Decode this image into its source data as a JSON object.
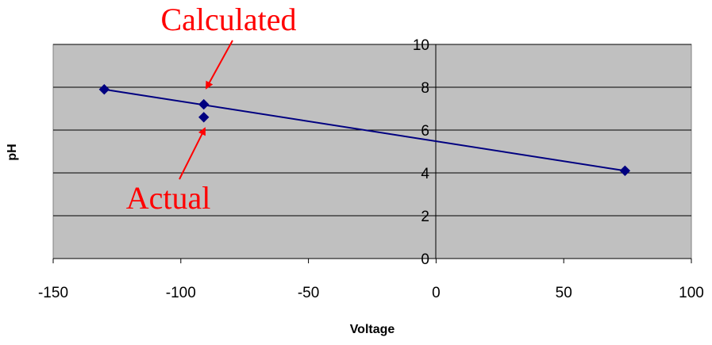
{
  "colors": {
    "plot_background": "#c0c0c0",
    "gridline": "#000000",
    "series_line": "#000080",
    "marker": "#000080",
    "annotation": "#ff0000"
  },
  "chart_data": {
    "type": "scatter",
    "xlabel": "Voltage",
    "ylabel": "pH",
    "xlim": [
      -150,
      100
    ],
    "ylim": [
      0,
      10
    ],
    "x_ticks": [
      -150,
      -100,
      -50,
      0,
      50,
      100
    ],
    "y_ticks": [
      0,
      2,
      4,
      6,
      8,
      10
    ],
    "grid": "horizontal major gridlines",
    "legend": "none",
    "points": [
      {
        "x": -130,
        "y": 7.9
      },
      {
        "x": -91,
        "y": 7.2
      },
      {
        "x": -91,
        "y": 6.6
      },
      {
        "x": 74,
        "y": 4.1
      }
    ],
    "line": {
      "x": [
        -130,
        74
      ],
      "y": [
        7.9,
        4.1
      ]
    },
    "annotations": [
      {
        "text": "Calculated",
        "points_to": {
          "x": -91,
          "y": 7.2
        }
      },
      {
        "text": "Actual",
        "points_to": {
          "x": -91,
          "y": 6.6
        }
      }
    ]
  }
}
